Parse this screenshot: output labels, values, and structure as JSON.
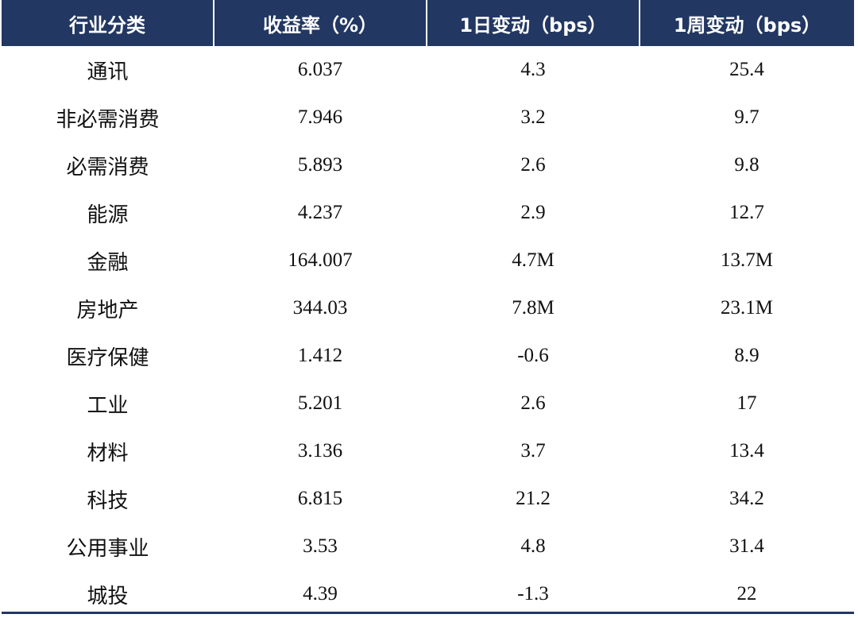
{
  "table": {
    "headers": [
      "行业分类",
      "收益率（%）",
      "1日变动（bps）",
      "1周变动（bps）"
    ],
    "rows": [
      [
        "通讯",
        "6.037",
        "4.3",
        "25.4"
      ],
      [
        "非必需消费",
        "7.946",
        "3.2",
        "9.7"
      ],
      [
        "必需消费",
        "5.893",
        "2.6",
        "9.8"
      ],
      [
        "能源",
        "4.237",
        "2.9",
        "12.7"
      ],
      [
        "金融",
        "164.007",
        "4.7M",
        "13.7M"
      ],
      [
        "房地产",
        "344.03",
        "7.8M",
        "23.1M"
      ],
      [
        "医疗保健",
        "1.412",
        "-0.6",
        "8.9"
      ],
      [
        "工业",
        "5.201",
        "2.6",
        "17"
      ],
      [
        "材料",
        "3.136",
        "3.7",
        "13.4"
      ],
      [
        "科技",
        "6.815",
        "21.2",
        "34.2"
      ],
      [
        "公用事业",
        "3.53",
        "4.8",
        "31.4"
      ],
      [
        "城投",
        "4.39",
        "-1.3",
        "22"
      ]
    ],
    "colors": {
      "header_bg": "#223762",
      "header_text": "#ffffff",
      "body_text": "#111111"
    }
  }
}
